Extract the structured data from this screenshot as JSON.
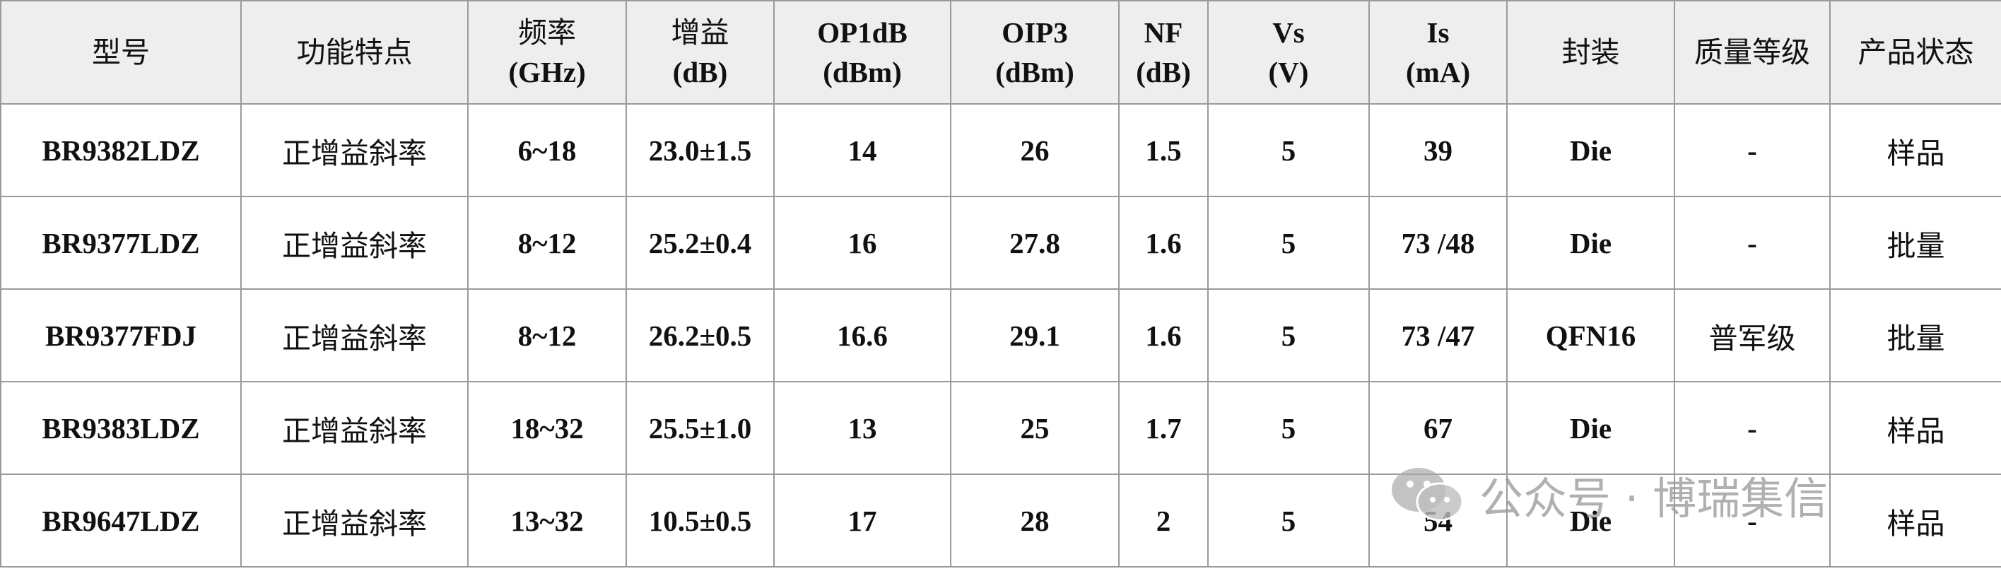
{
  "table": {
    "header": [
      [
        "型号"
      ],
      [
        "功能特点"
      ],
      [
        "频率",
        "(GHz)"
      ],
      [
        "增益",
        "(dB)"
      ],
      [
        "OP1dB",
        "(dBm)"
      ],
      [
        "OIP3",
        "(dBm)"
      ],
      [
        "NF",
        "(dB)"
      ],
      [
        "Vs",
        "(V)"
      ],
      [
        "Is",
        "(mA)"
      ],
      [
        "封装"
      ],
      [
        "质量等级"
      ],
      [
        "产品状态"
      ]
    ],
    "rows": [
      [
        "BR9382LDZ",
        "正增益斜率",
        "6~18",
        "23.0±1.5",
        "14",
        "26",
        "1.5",
        "5",
        "39",
        "Die",
        "-",
        "样品"
      ],
      [
        "BR9377LDZ",
        "正增益斜率",
        "8~12",
        "25.2±0.4",
        "16",
        "27.8",
        "1.6",
        "5",
        "73 /48",
        "Die",
        "-",
        "批量"
      ],
      [
        "BR9377FDJ",
        "正增益斜率",
        "8~12",
        "26.2±0.5",
        "16.6",
        "29.1",
        "1.6",
        "5",
        "73 /47",
        "QFN16",
        "普军级",
        "批量"
      ],
      [
        "BR9383LDZ",
        "正增益斜率",
        "18~32",
        "25.5±1.0",
        "13",
        "25",
        "1.7",
        "5",
        "67",
        "Die",
        "-",
        "样品"
      ],
      [
        "BR9647LDZ",
        "正增益斜率",
        "13~32",
        "10.5±0.5",
        "17",
        "28",
        "2",
        "5",
        "54",
        "Die",
        "-",
        "样品"
      ]
    ]
  },
  "watermark": "公众号 · 博瑞集信"
}
